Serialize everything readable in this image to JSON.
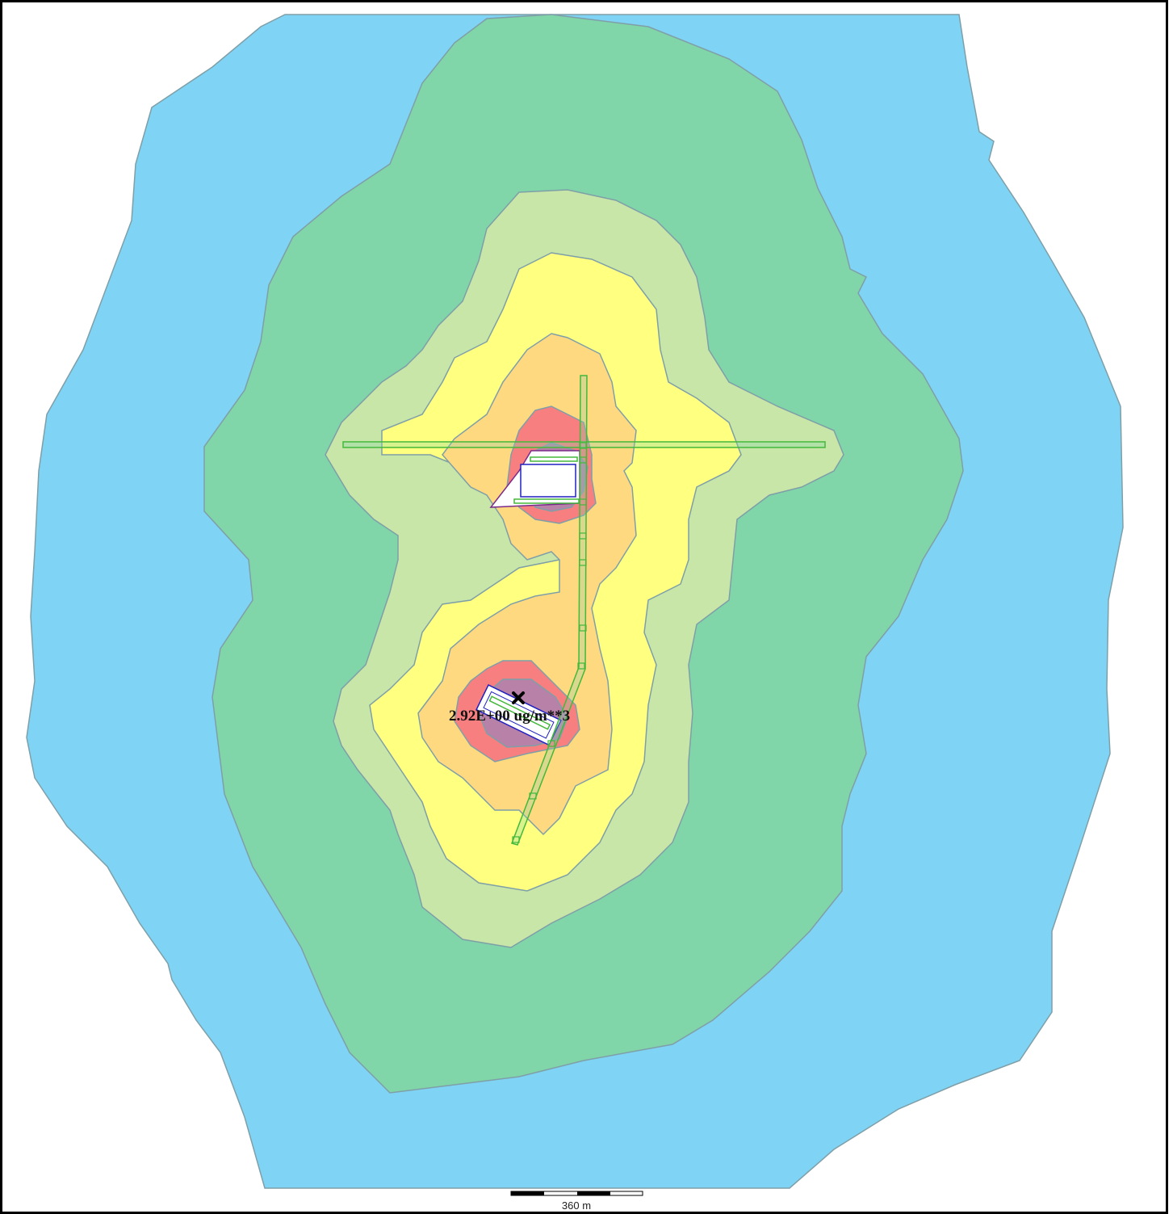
{
  "map": {
    "max_value_label": "2.92E+00 ug/m**3",
    "scale_bar_label": "360 m",
    "contour_colors": {
      "level_1": "#7fd4f5",
      "level_2": "#80d6a8",
      "level_3": "#c8e6a8",
      "level_4": "#ffff80",
      "level_5": "#ffd980",
      "level_6": "#f77f7f",
      "level_7": "#b881a8"
    },
    "source_color": "#44b83a",
    "building_color": "#2020c0",
    "contour_line_color": "#7f9fa8"
  }
}
